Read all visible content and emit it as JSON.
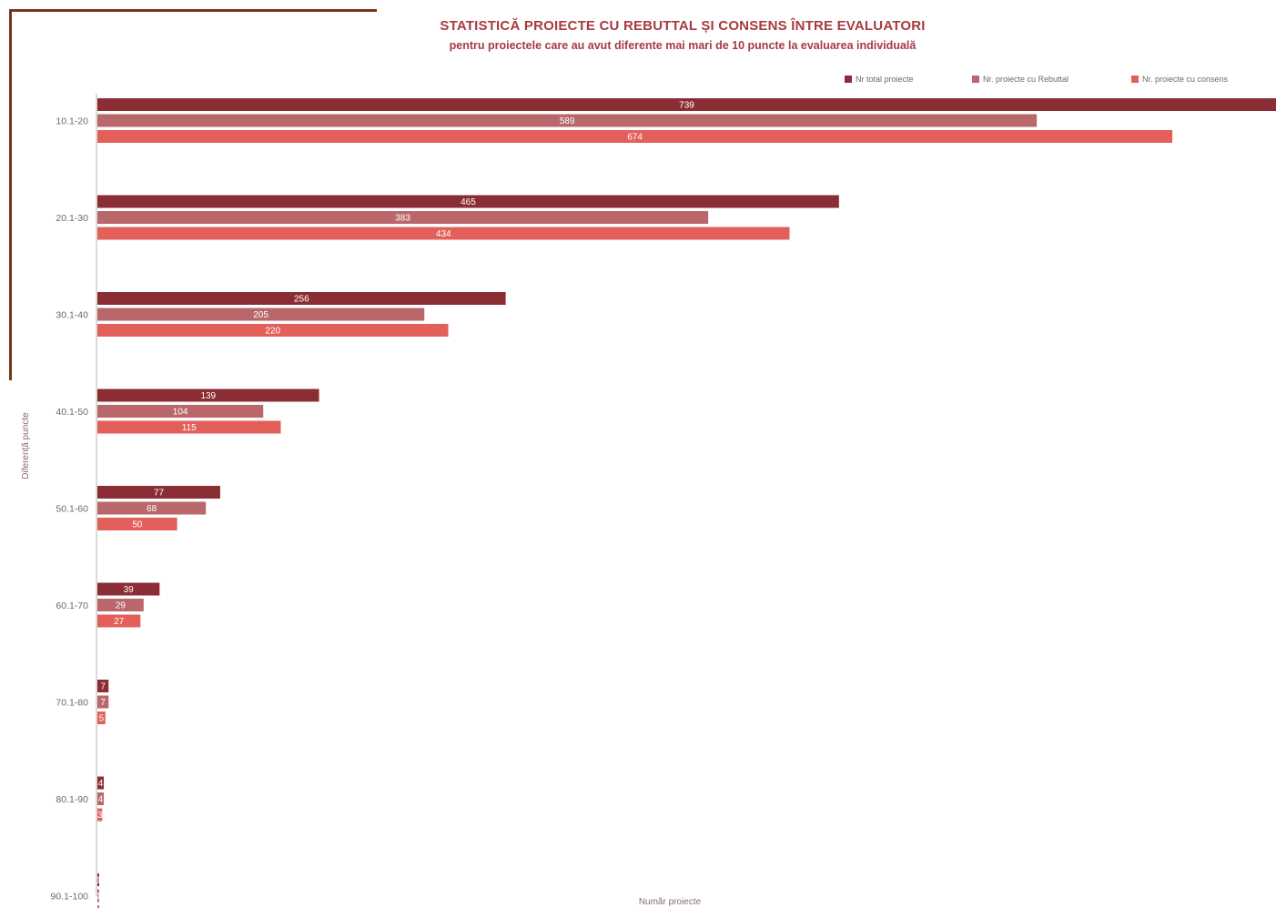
{
  "chart_data": {
    "type": "bar",
    "orientation": "horizontal",
    "title": "STATISTICĂ PROIECTE CU REBUTTAL ȘI CONSENS ÎNTRE EVALUATORI",
    "subtitle": "pentru proiectele care au avut diferente mai mari de 10 puncte  la evaluarea individuală",
    "ylabel": "Diferență puncte",
    "xlabel": "Număr proiecte",
    "xlim": [
      0,
      739
    ],
    "legend_position": "top-right",
    "grid": false,
    "categories": [
      "10.1-20",
      "20.1-30",
      "30.1-40",
      "40.1-50",
      "50.1-60",
      "60.1-70",
      "70.1-80",
      "80.1-90",
      "90.1-100"
    ],
    "series": [
      {
        "name": "Nr total proiecte",
        "color": "#8b2d35",
        "values": [
          739,
          465,
          256,
          139,
          77,
          39,
          7,
          4,
          1
        ]
      },
      {
        "name": "Nr. proiecte cu Rebuttal",
        "color": "#b9676a",
        "values": [
          589,
          383,
          205,
          104,
          68,
          29,
          7,
          4,
          1
        ]
      },
      {
        "name": "Nr. proiecte cu consens",
        "color": "#e3605a",
        "values": [
          674,
          434,
          220,
          115,
          50,
          27,
          5,
          3,
          1
        ]
      }
    ]
  }
}
